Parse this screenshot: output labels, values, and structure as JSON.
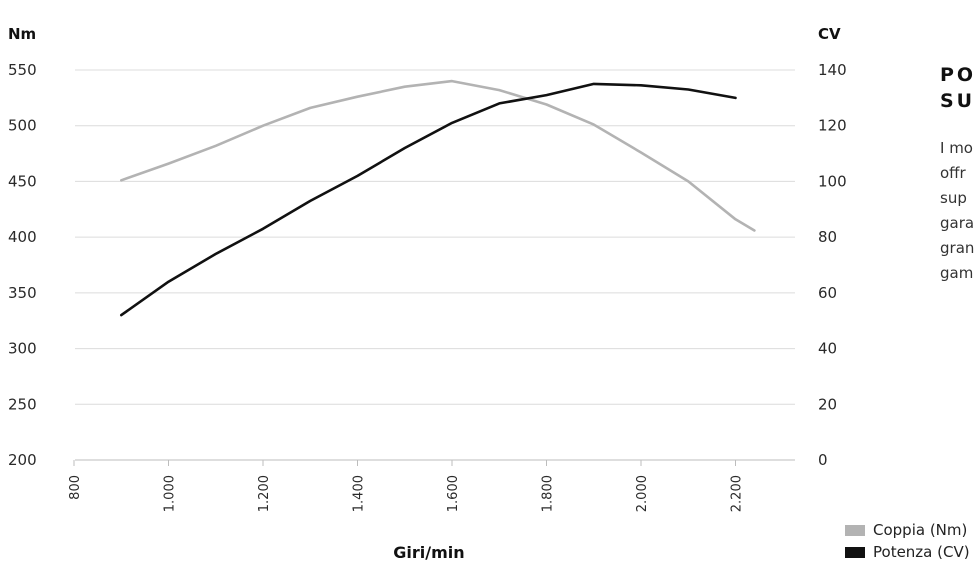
{
  "chart_data": {
    "type": "line",
    "x": [
      900,
      1000,
      1100,
      1200,
      1300,
      1400,
      1500,
      1600,
      1700,
      1800,
      1900,
      2000,
      2100,
      2200,
      2240
    ],
    "xticks": [
      "800",
      "1.000",
      "1.200",
      "1.400",
      "1.600",
      "1.800",
      "2.000",
      "2.200"
    ],
    "xtick_values": [
      800,
      1000,
      1200,
      1400,
      1600,
      1800,
      2000,
      2200
    ],
    "xlabel": "Giri/min",
    "xlim": [
      800,
      2300
    ],
    "y_left": {
      "unit": "Nm",
      "ticks": [
        "550",
        "500",
        "450",
        "400",
        "350",
        "300",
        "250",
        "200"
      ],
      "tick_values": [
        550,
        500,
        450,
        400,
        350,
        300,
        250,
        200
      ],
      "lim": [
        200,
        550
      ]
    },
    "y_right": {
      "unit": "CV",
      "ticks": [
        "140",
        "120",
        "100",
        "80",
        "60",
        "40",
        "20",
        "0"
      ],
      "tick_values": [
        140,
        120,
        100,
        80,
        60,
        40,
        20,
        0
      ],
      "lim": [
        0,
        140
      ]
    },
    "series": [
      {
        "name": "Coppia (Nm)",
        "axis": "left",
        "color": "#b3b3b3",
        "x": [
          900,
          1000,
          1100,
          1200,
          1300,
          1400,
          1500,
          1600,
          1700,
          1800,
          1900,
          2000,
          2100,
          2200,
          2240
        ],
        "values": [
          451,
          466,
          482,
          500,
          516,
          526,
          535,
          540,
          532,
          519,
          501,
          476,
          450,
          416,
          406
        ]
      },
      {
        "name": "Potenza (CV)",
        "axis": "right",
        "color": "#111111",
        "x": [
          900,
          1000,
          1100,
          1200,
          1300,
          1400,
          1500,
          1600,
          1700,
          1800,
          1900,
          2000,
          2100,
          2200
        ],
        "values": [
          52,
          64,
          74,
          83,
          93,
          102,
          112,
          121,
          128,
          131,
          135,
          134.5,
          133,
          130
        ]
      }
    ],
    "grid": true,
    "legend": "bottom-right"
  },
  "side": {
    "title_lines": [
      "PO",
      "SU"
    ],
    "text_lines": [
      "I mo",
      "offr",
      "sup",
      "gara",
      "gran",
      "gam"
    ]
  },
  "legend": {
    "items": [
      {
        "label": "Coppia (Nm)",
        "color": "#b3b3b3"
      },
      {
        "label": "Potenza (CV)",
        "color": "#111111"
      }
    ]
  }
}
